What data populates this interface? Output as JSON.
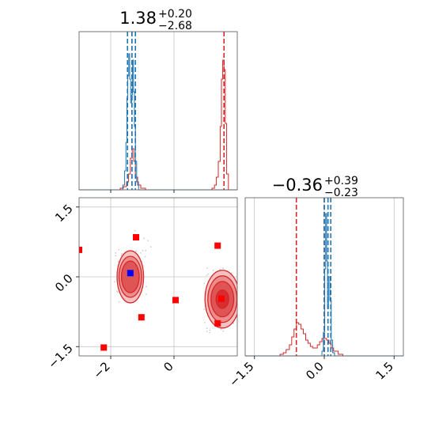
{
  "chart_data": {
    "type": "corner",
    "colors": {
      "red": "#d62728",
      "blue": "#1f77b4",
      "grid": "#b0b0b0",
      "spine": "#555555",
      "marker_red": "#ff0000",
      "marker_blue": "#0000ff"
    },
    "panel_top": {
      "title_main": "1.38",
      "title_sup": "+0.20",
      "title_sub": "−2.68",
      "xlim": [
        -3.0,
        2.0
      ],
      "grid_x": [
        -2,
        0
      ],
      "red_dashed": [
        -1.33,
        1.58
      ],
      "blue_dashed": [
        -1.47,
        -1.33,
        -1.22
      ],
      "blue_hist": [
        [
          -1.7,
          0.0
        ],
        [
          -1.62,
          0.03
        ],
        [
          -1.56,
          0.12
        ],
        [
          -1.52,
          0.3
        ],
        [
          -1.49,
          0.58
        ],
        [
          -1.46,
          0.72
        ],
        [
          -1.43,
          0.86
        ],
        [
          -1.4,
          0.7
        ],
        [
          -1.37,
          0.55
        ],
        [
          -1.34,
          0.6
        ],
        [
          -1.31,
          0.82
        ],
        [
          -1.28,
          0.62
        ],
        [
          -1.25,
          0.4
        ],
        [
          -1.22,
          0.18
        ],
        [
          -1.18,
          0.05
        ],
        [
          -1.12,
          0.0
        ]
      ],
      "red_hist": [
        [
          -1.9,
          0.0
        ],
        [
          -1.7,
          0.01
        ],
        [
          -1.6,
          0.02
        ],
        [
          -1.5,
          0.05
        ],
        [
          -1.44,
          0.1
        ],
        [
          -1.38,
          0.2
        ],
        [
          -1.32,
          0.26
        ],
        [
          -1.27,
          0.18
        ],
        [
          -1.22,
          0.08
        ],
        [
          -1.15,
          0.03
        ],
        [
          -1.05,
          0.01
        ],
        [
          -0.9,
          0.0
        ],
        [
          1.1,
          0.0
        ],
        [
          1.2,
          0.01
        ],
        [
          1.28,
          0.03
        ],
        [
          1.34,
          0.08
        ],
        [
          1.4,
          0.18
        ],
        [
          1.46,
          0.4
        ],
        [
          1.5,
          0.7
        ],
        [
          1.54,
          0.82
        ],
        [
          1.58,
          0.76
        ],
        [
          1.62,
          0.42
        ],
        [
          1.66,
          0.1
        ],
        [
          1.72,
          0.0
        ]
      ]
    },
    "panel_scatter": {
      "xlim": [
        -3.0,
        2.0
      ],
      "ylim": [
        -1.7,
        1.7
      ],
      "x_ticks": [
        "−2",
        "0"
      ],
      "x_tick_values": [
        -2,
        0
      ],
      "y_ticks": [
        "−1.5",
        "0.0",
        "1.5"
      ],
      "y_tick_values": [
        -1.5,
        0.0,
        1.5
      ],
      "red_markers": [
        [
          -3.0,
          0.58
        ],
        [
          -2.22,
          -1.52
        ],
        [
          -1.2,
          0.85
        ],
        [
          -1.03,
          -0.87
        ],
        [
          0.05,
          -0.5
        ],
        [
          1.38,
          0.67
        ],
        [
          1.38,
          -1.0
        ],
        [
          1.5,
          -0.47
        ]
      ],
      "blue_markers": [
        [
          -1.38,
          0.08
        ]
      ],
      "blobs": [
        {
          "cx": -1.38,
          "cy": 0.0,
          "levels": [
            [
              0.42,
              0.56
            ],
            [
              0.36,
              0.44
            ],
            [
              0.28,
              0.34
            ]
          ]
        },
        {
          "cx": 1.53,
          "cy": -0.48,
          "levels": [
            [
              0.55,
              0.62
            ],
            [
              0.46,
              0.5
            ],
            [
              0.36,
              0.38
            ],
            [
              0.2,
              0.2
            ]
          ]
        }
      ]
    },
    "panel_right": {
      "title_main": "−0.36",
      "title_sup": "+0.39",
      "title_sub": "−0.23",
      "xlim": [
        -1.7,
        1.7
      ],
      "x_ticks": [
        "−1.5",
        "0.0",
        "1.5"
      ],
      "x_tick_values": [
        -1.5,
        0.0,
        1.5
      ],
      "red_dashed": [
        -0.6,
        0.0
      ],
      "blue_dashed": [
        0.0,
        0.08,
        0.14
      ],
      "blue_hist": [
        [
          -0.1,
          0.0
        ],
        [
          -0.05,
          0.03
        ],
        [
          -0.02,
          0.15
        ],
        [
          0.01,
          0.55
        ],
        [
          0.03,
          0.9
        ],
        [
          0.05,
          0.6
        ],
        [
          0.07,
          0.3
        ],
        [
          0.09,
          0.5
        ],
        [
          0.12,
          0.35
        ],
        [
          0.15,
          0.1
        ],
        [
          0.18,
          0.02
        ],
        [
          0.22,
          0.0
        ]
      ],
      "red_hist": [
        [
          -1.05,
          0.0
        ],
        [
          -0.95,
          0.01
        ],
        [
          -0.88,
          0.02
        ],
        [
          -0.82,
          0.04
        ],
        [
          -0.75,
          0.07
        ],
        [
          -0.7,
          0.12
        ],
        [
          -0.65,
          0.17
        ],
        [
          -0.6,
          0.21
        ],
        [
          -0.55,
          0.2
        ],
        [
          -0.5,
          0.17
        ],
        [
          -0.45,
          0.14
        ],
        [
          -0.4,
          0.1
        ],
        [
          -0.35,
          0.08
        ],
        [
          -0.3,
          0.06
        ],
        [
          -0.25,
          0.05
        ],
        [
          -0.2,
          0.05
        ],
        [
          -0.15,
          0.07
        ],
        [
          -0.1,
          0.09
        ],
        [
          -0.05,
          0.11
        ],
        [
          0.0,
          0.11
        ],
        [
          0.05,
          0.1
        ],
        [
          0.1,
          0.08
        ],
        [
          0.15,
          0.05
        ],
        [
          0.2,
          0.03
        ],
        [
          0.3,
          0.01
        ],
        [
          0.4,
          0.0
        ]
      ]
    }
  }
}
